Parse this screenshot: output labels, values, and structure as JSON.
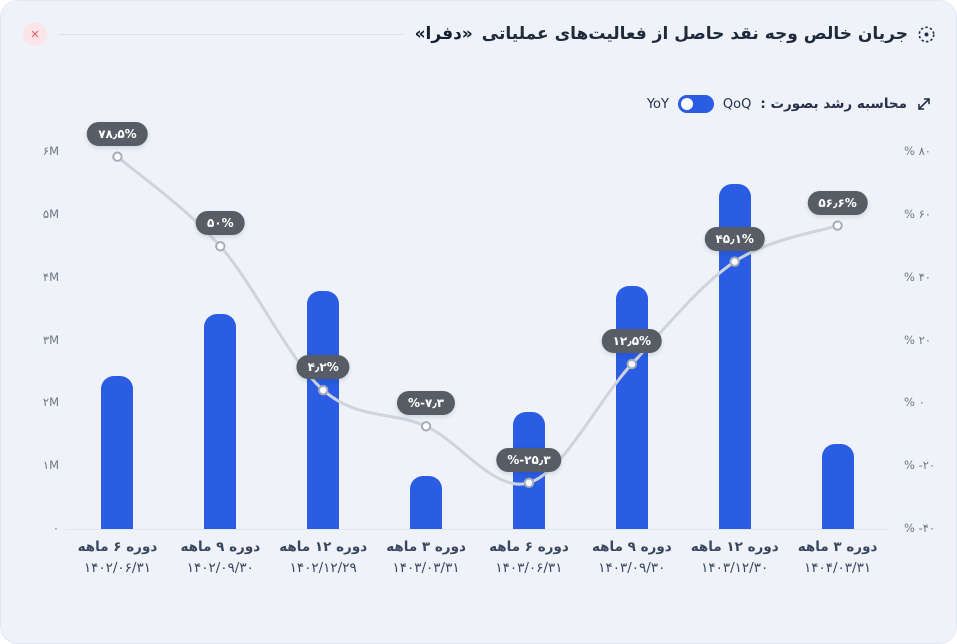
{
  "header": {
    "title_prefix": "جریان خالص وجه نقد حاصل از فعالیت‌های عملیاتی",
    "title_emphasis": "«دفرا»"
  },
  "icons": {
    "close": "✕",
    "title": "dashed-circle-target",
    "legend": "diagonal-trend-arrows"
  },
  "legend": {
    "label": "محاسبه رشد بصورت :",
    "qoq": "QoQ",
    "yoy": "YoY",
    "selected": "YoY"
  },
  "colors": {
    "card_bg": "#eff3f9",
    "bar": "#2a5ce4",
    "line": "#cfd4dc",
    "marker_stroke": "#a6adb9",
    "pill_bg": "#575c66",
    "pill_text": "#ffffff",
    "accent": "#2a5ce4",
    "axis_text": "#6d7685",
    "close_bg": "#fbe5e8",
    "close_icon": "#e35f6d"
  },
  "chart_data": {
    "type": "bar",
    "subtype": "bar-line-combo",
    "title": "جریان خالص وجه نقد حاصل از فعالیت‌های عملیاتی «دفرا»",
    "grid": false,
    "legend_position": "top-right",
    "categories": [
      {
        "period": "دوره ۶ ماهه",
        "date": "۱۴۰۲/۰۶/۳۱"
      },
      {
        "period": "دوره ۹ ماهه",
        "date": "۱۴۰۲/۰۹/۳۰"
      },
      {
        "period": "دوره ۱۲ ماهه",
        "date": "۱۴۰۲/۱۲/۲۹"
      },
      {
        "period": "دوره ۳ ماهه",
        "date": "۱۴۰۳/۰۳/۳۱"
      },
      {
        "period": "دوره ۶ ماهه",
        "date": "۱۴۰۳/۰۶/۳۱"
      },
      {
        "period": "دوره ۹ ماهه",
        "date": "۱۴۰۳/۰۹/۳۰"
      },
      {
        "period": "دوره ۱۲ ماهه",
        "date": "۱۴۰۳/۱۲/۳۰"
      },
      {
        "period": "دوره ۳ ماهه",
        "date": "۱۴۰۴/۰۳/۳۱"
      }
    ],
    "series": [
      {
        "name": "net-operating-cash-flow",
        "type": "bar",
        "axis": "left",
        "values": [
          2430000,
          3420000,
          3790000,
          840000,
          1860000,
          3870000,
          5490000,
          1350000
        ]
      },
      {
        "name": "growth-rate-yoy",
        "type": "line",
        "axis": "right",
        "values": [
          78.5,
          50,
          4.2,
          -7.3,
          -25.3,
          12.5,
          45.1,
          56.6
        ],
        "labels": [
          "۷۸٫۵%",
          "۵۰%",
          "۴٫۲%",
          "%-۷٫۳",
          "%-۲۵٫۳",
          "۱۲٫۵%",
          "۴۵٫۱%",
          "۵۶٫۶%"
        ]
      }
    ],
    "left_axis": {
      "min": 0,
      "max": 6000000,
      "ticks": [
        {
          "value": 6000000,
          "label": "۶M"
        },
        {
          "value": 5000000,
          "label": "۵M"
        },
        {
          "value": 4000000,
          "label": "۴M"
        },
        {
          "value": 3000000,
          "label": "۳M"
        },
        {
          "value": 2000000,
          "label": "۲M"
        },
        {
          "value": 1000000,
          "label": "۱M"
        },
        {
          "value": 0,
          "label": "۰"
        }
      ]
    },
    "right_axis": {
      "min": -40,
      "max": 80,
      "ticks": [
        {
          "value": 80,
          "label": "% ۸۰"
        },
        {
          "value": 60,
          "label": "% ۶۰"
        },
        {
          "value": 40,
          "label": "% ۴۰"
        },
        {
          "value": 20,
          "label": "% ۲۰"
        },
        {
          "value": 0,
          "label": "% ۰"
        },
        {
          "value": -20,
          "label": "% -۲۰"
        },
        {
          "value": -40,
          "label": "% -۴۰"
        }
      ]
    }
  }
}
